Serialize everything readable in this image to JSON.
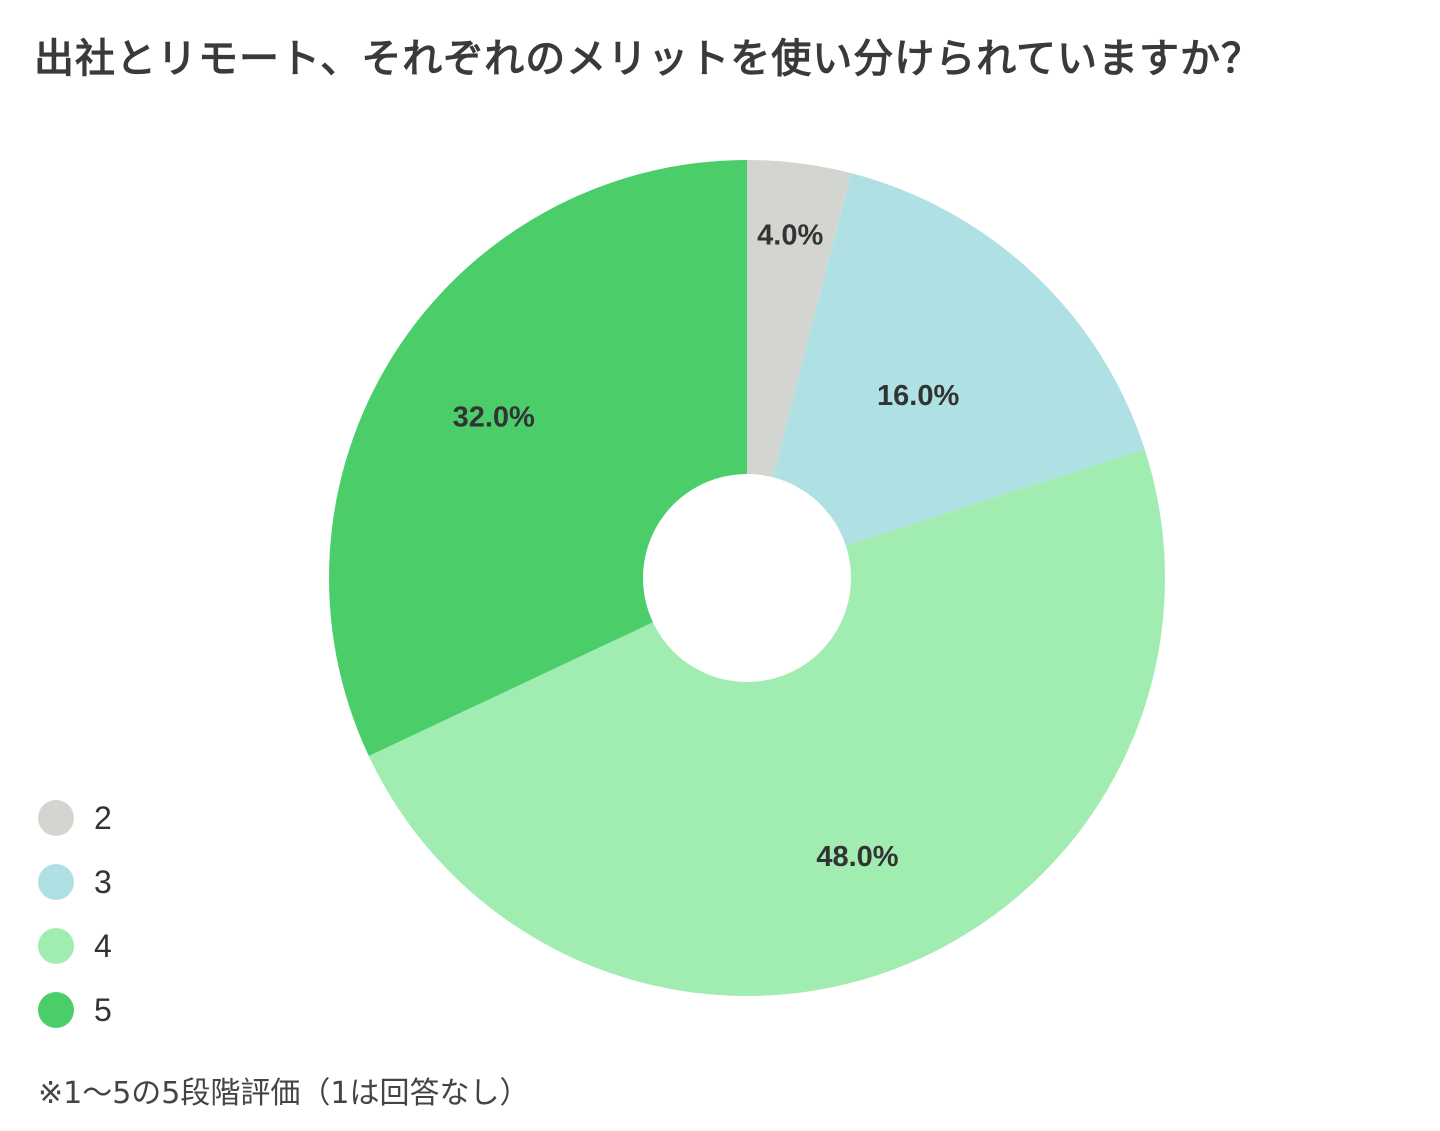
{
  "chart_data": {
    "type": "pie",
    "title": "出社とリモート、それぞれのメリットを使い分けられていますか？",
    "donut": true,
    "legend_position": "bottom-left",
    "categories": [
      "2",
      "3",
      "4",
      "5"
    ],
    "values": [
      4.0,
      16.0,
      48.0,
      32.0
    ],
    "labels": [
      "4.0%",
      "16.0%",
      "48.0%",
      "32.0%"
    ],
    "colors": [
      "#d3d6d0",
      "#afe0e4",
      "#a1ecb1",
      "#4bcd6a"
    ]
  },
  "footnote": "※1〜5の5段階評価（1は回答なし）"
}
